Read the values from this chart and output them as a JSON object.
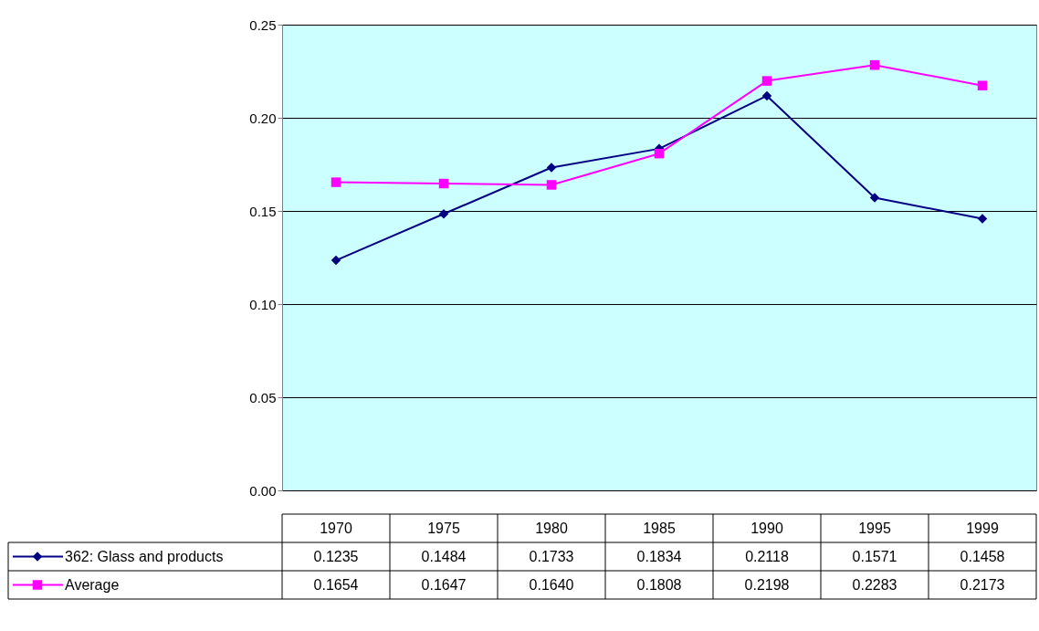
{
  "chart_data": {
    "type": "line",
    "categories": [
      "1970",
      "1975",
      "1980",
      "1985",
      "1990",
      "1995",
      "1999"
    ],
    "series": [
      {
        "name": "362: Glass and products",
        "color": "#000080",
        "marker": "diamond",
        "values": [
          0.1235,
          0.1484,
          0.1733,
          0.1834,
          0.2118,
          0.1571,
          0.1458
        ],
        "value_labels": [
          "0.1235",
          "0.1484",
          "0.1733",
          "0.1834",
          "0.2118",
          "0.1571",
          "0.1458"
        ]
      },
      {
        "name": "Average",
        "color": "#ff00ff",
        "marker": "square",
        "values": [
          0.1654,
          0.1647,
          0.164,
          0.1808,
          0.2198,
          0.2283,
          0.2173
        ],
        "value_labels": [
          "0.1654",
          "0.1647",
          "0.1640",
          "0.1808",
          "0.2198",
          "0.2283",
          "0.2173"
        ]
      }
    ],
    "ylim": [
      0,
      0.25
    ],
    "yticks": [
      {
        "value": 0,
        "label": "0.00"
      },
      0.05,
      {
        "value": 0.1,
        "label": "0.10"
      },
      0.15,
      {
        "value": 0.2,
        "label": "0.20"
      },
      0.25
    ],
    "grid": "y",
    "legend": "bottom"
  }
}
